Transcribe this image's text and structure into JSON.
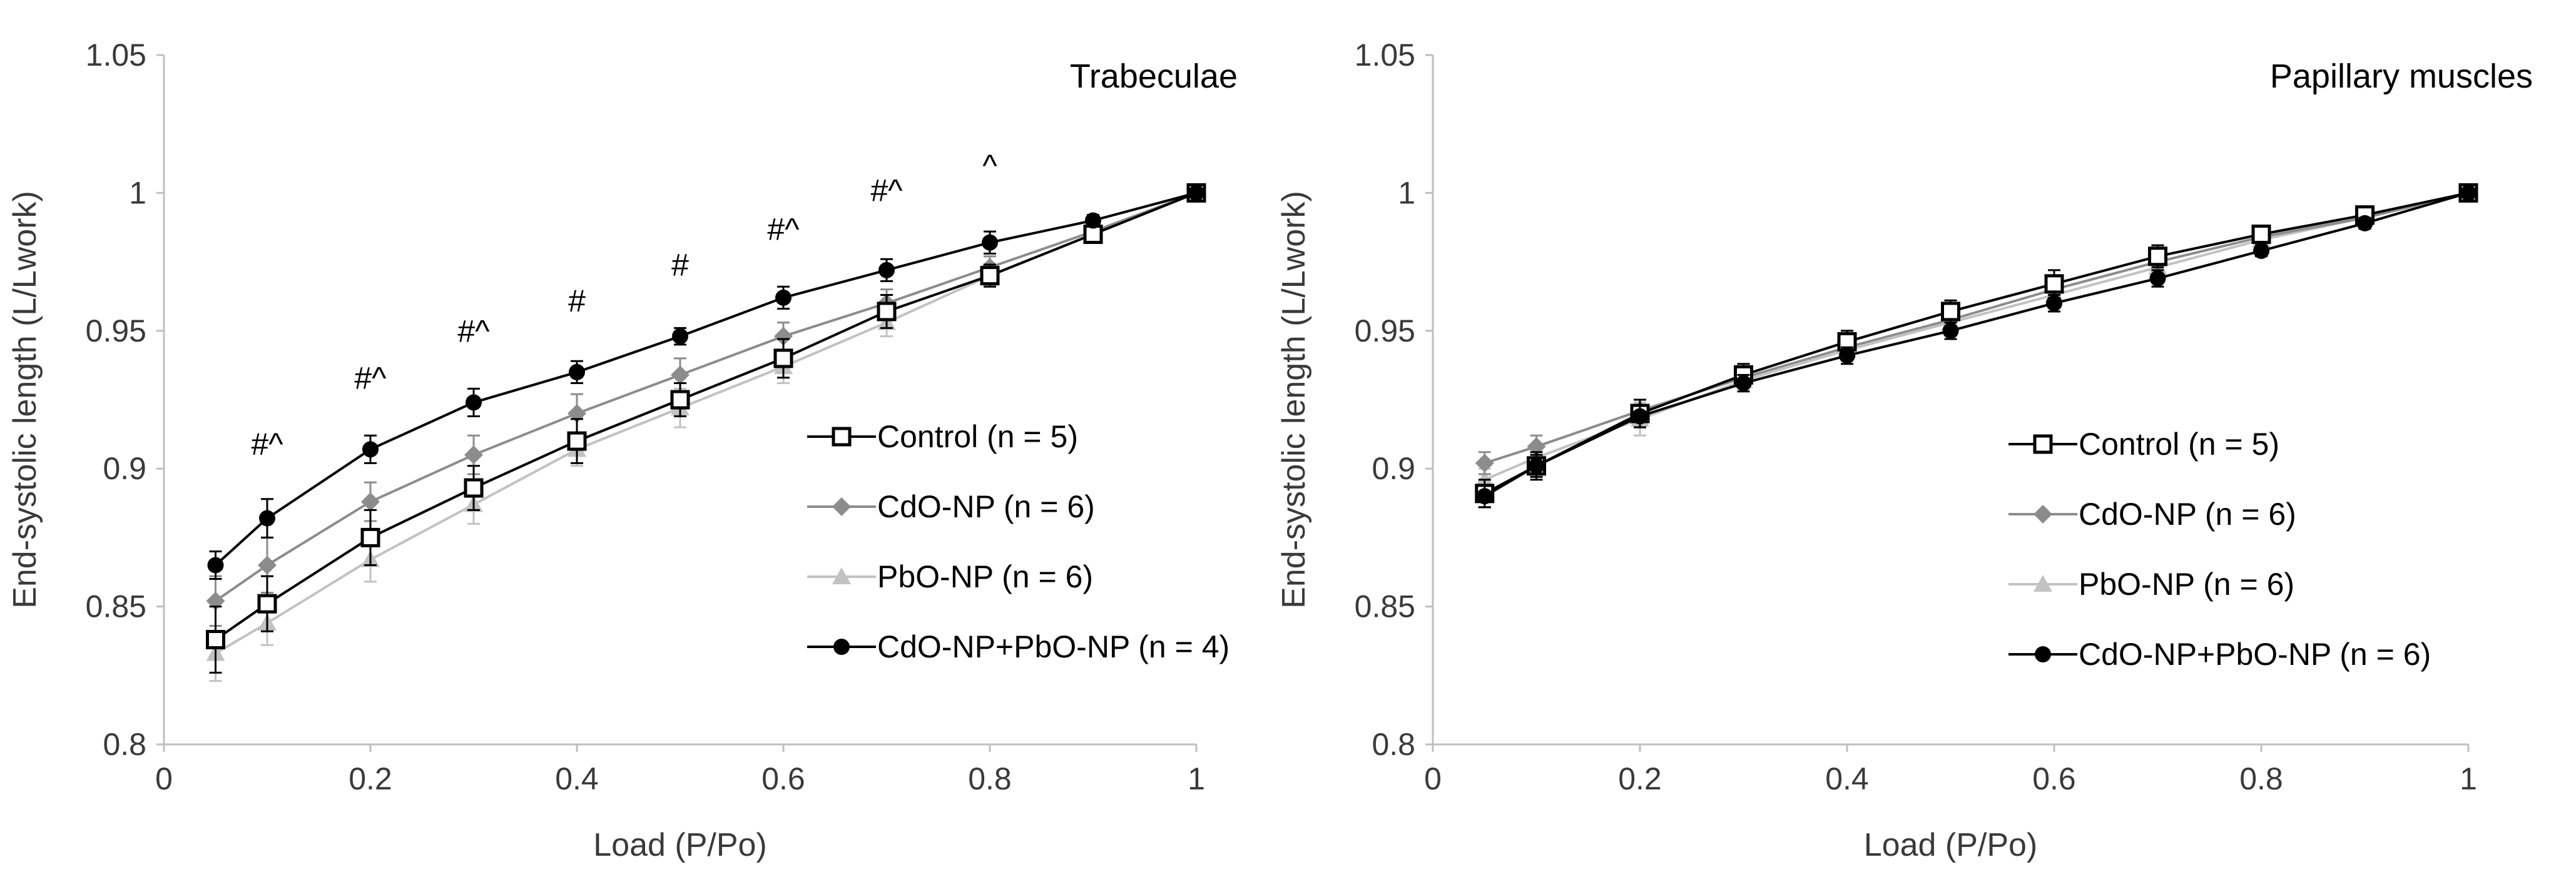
{
  "chart_data": [
    {
      "type": "line",
      "title": "Trabeculae",
      "xlabel": "Load (P/Po)",
      "ylabel": "End-systolic  length (L/Lwork)",
      "xlim": [
        0,
        1
      ],
      "ylim": [
        0.8,
        1.05
      ],
      "xticks": [
        "0",
        "0.2",
        "0.4",
        "0.6",
        "0.8",
        "1"
      ],
      "yticks": [
        "0.8",
        "0.85",
        "0.9",
        "0.95",
        "1",
        "1.05"
      ],
      "legend_position": "bottom-right",
      "x": [
        0.05,
        0.1,
        0.2,
        0.3,
        0.4,
        0.5,
        0.6,
        0.7,
        0.8,
        0.9,
        1
      ],
      "series": [
        {
          "name": "Control (n = 5)",
          "color": "#000000",
          "marker": "open-square",
          "values": [
            0.838,
            0.851,
            0.875,
            0.893,
            0.91,
            0.925,
            0.94,
            0.957,
            0.97,
            0.985,
            1
          ],
          "errors": [
            0.012,
            0.01,
            0.01,
            0.008,
            0.008,
            0.006,
            0.007,
            0.006,
            0.004,
            0.003,
            0
          ]
        },
        {
          "name": "CdO-NP (n = 6)",
          "color": "#8c8c8c",
          "marker": "diamond",
          "values": [
            0.852,
            0.865,
            0.888,
            0.905,
            0.92,
            0.934,
            0.948,
            0.96,
            0.973,
            0.986,
            1
          ],
          "errors": [
            0.009,
            0.01,
            0.007,
            0.007,
            0.007,
            0.006,
            0.005,
            0.005,
            0.004,
            0.003,
            0
          ]
        },
        {
          "name": "PbO-NP (n = 6)",
          "color": "#c2c2c2",
          "marker": "triangle",
          "values": [
            0.833,
            0.844,
            0.867,
            0.887,
            0.907,
            0.922,
            0.937,
            0.953,
            0.97,
            0.985,
            1
          ],
          "errors": [
            0.01,
            0.008,
            0.008,
            0.007,
            0.006,
            0.007,
            0.006,
            0.005,
            0.004,
            0.003,
            0
          ]
        },
        {
          "name": "CdO-NP+PbO-NP (n = 4)",
          "color": "#000000",
          "marker": "circle",
          "values": [
            0.865,
            0.882,
            0.907,
            0.924,
            0.935,
            0.948,
            0.962,
            0.972,
            0.982,
            0.99,
            1
          ],
          "errors": [
            0.005,
            0.007,
            0.005,
            0.005,
            0.004,
            0.003,
            0.004,
            0.004,
            0.004,
            0.002,
            0
          ]
        }
      ],
      "annotations": [
        {
          "x": 0.1,
          "y": 0.905,
          "text": "#^"
        },
        {
          "x": 0.2,
          "y": 0.929,
          "text": "#^"
        },
        {
          "x": 0.3,
          "y": 0.946,
          "text": "#^"
        },
        {
          "x": 0.4,
          "y": 0.957,
          "text": "#"
        },
        {
          "x": 0.5,
          "y": 0.97,
          "text": "#"
        },
        {
          "x": 0.6,
          "y": 0.983,
          "text": "#^"
        },
        {
          "x": 0.7,
          "y": 0.997,
          "text": "#^"
        },
        {
          "x": 0.8,
          "y": 1.006,
          "text": "^"
        }
      ]
    },
    {
      "type": "line",
      "title": "Papillary  muscles",
      "xlabel": "Load (P/Po)",
      "ylabel": "End-systolic  length (L/Lwork)",
      "xlim": [
        0,
        1
      ],
      "ylim": [
        0.8,
        1.05
      ],
      "xticks": [
        "0",
        "0.2",
        "0.4",
        "0.6",
        "0.8",
        "1"
      ],
      "yticks": [
        "0.8",
        "0.85",
        "0.9",
        "0.95",
        "1",
        "1.05"
      ],
      "legend_position": "bottom-right",
      "x": [
        0.05,
        0.1,
        0.2,
        0.3,
        0.4,
        0.5,
        0.6,
        0.7,
        0.8,
        0.9,
        1
      ],
      "series": [
        {
          "name": "Control (n = 5)",
          "color": "#000000",
          "marker": "open-square",
          "values": [
            0.891,
            0.901,
            0.92,
            0.934,
            0.946,
            0.957,
            0.967,
            0.977,
            0.985,
            0.992,
            1
          ],
          "errors": [
            0.005,
            0.005,
            0.005,
            0.004,
            0.004,
            0.004,
            0.005,
            0.004,
            0.003,
            0.002,
            0
          ]
        },
        {
          "name": "CdO-NP (n = 6)",
          "color": "#8c8c8c",
          "marker": "diamond",
          "values": [
            0.902,
            0.908,
            0.921,
            0.933,
            0.944,
            0.954,
            0.965,
            0.975,
            0.984,
            0.991,
            1
          ],
          "errors": [
            0.004,
            0.004,
            0.004,
            0.003,
            0.003,
            0.003,
            0.003,
            0.003,
            0.002,
            0.002,
            0
          ]
        },
        {
          "name": "PbO-NP (n = 6)",
          "color": "#c2c2c2",
          "marker": "triangle",
          "values": [
            0.896,
            0.904,
            0.918,
            0.932,
            0.943,
            0.953,
            0.963,
            0.973,
            0.983,
            0.991,
            1
          ],
          "errors": [
            0.004,
            0.005,
            0.006,
            0.004,
            0.004,
            0.004,
            0.004,
            0.003,
            0.003,
            0.002,
            0
          ]
        },
        {
          "name": "CdO-NP+PbO-NP (n = 6)",
          "color": "#000000",
          "marker": "circle",
          "values": [
            0.89,
            0.901,
            0.919,
            0.931,
            0.941,
            0.95,
            0.96,
            0.969,
            0.979,
            0.989,
            1
          ],
          "errors": [
            0.004,
            0.004,
            0.004,
            0.003,
            0.003,
            0.003,
            0.003,
            0.003,
            0.002,
            0.002,
            0
          ]
        }
      ],
      "annotations": []
    }
  ]
}
